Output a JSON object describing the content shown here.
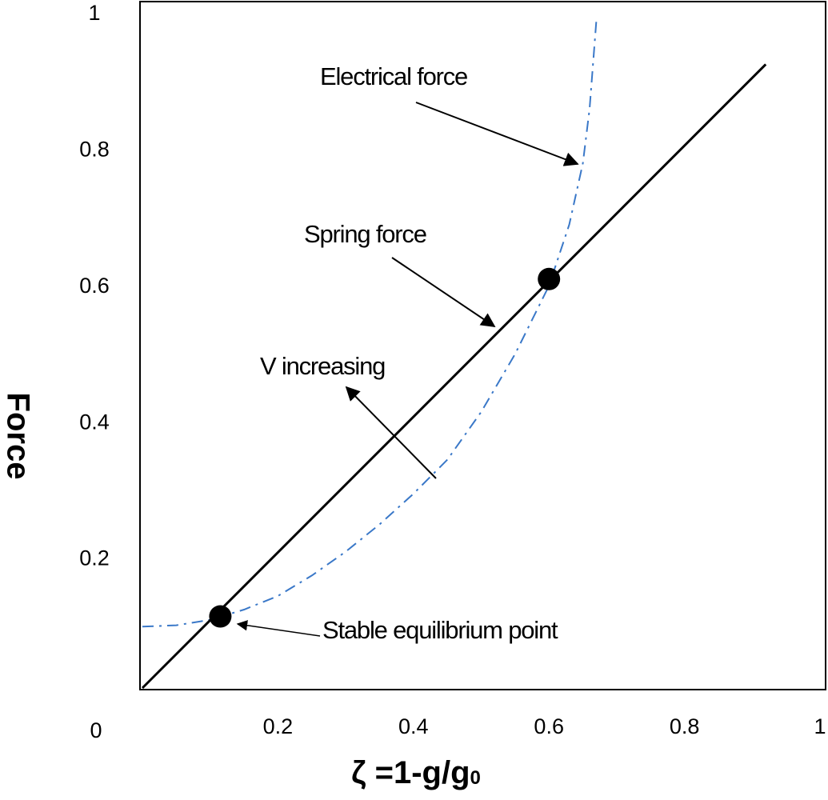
{
  "chart_data": {
    "type": "line",
    "xlabel": "ζ  =1-g/g",
    "xlabel_subscript": "0",
    "ylabel": "Force",
    "xlim": [
      0,
      1
    ],
    "ylim": [
      0,
      1
    ],
    "xticks": [
      0,
      0.2,
      0.4,
      0.6,
      0.8,
      1
    ],
    "yticks": [
      0.2,
      0.4,
      0.6,
      0.8,
      1
    ],
    "series": [
      {
        "name": "Electrical force",
        "color": "#3a78c8",
        "style": "dashdot",
        "x": [
          0,
          0.05,
          0.1,
          0.15,
          0.2,
          0.25,
          0.3,
          0.35,
          0.4,
          0.45,
          0.5,
          0.55,
          0.6,
          0.63,
          0.65,
          0.66,
          0.67
        ],
        "values": [
          0.09,
          0.092,
          0.1,
          0.115,
          0.135,
          0.165,
          0.2,
          0.24,
          0.285,
          0.335,
          0.405,
          0.49,
          0.59,
          0.68,
          0.77,
          0.85,
          0.98
        ]
      },
      {
        "name": "Spring force",
        "color": "#000000",
        "style": "solid",
        "x": [
          0,
          0.92
        ],
        "values": [
          0,
          0.915
        ]
      }
    ],
    "equilibrium_points": {
      "x": [
        0.115,
        0.6
      ],
      "values": [
        0.105,
        0.6
      ],
      "color": "#000000"
    },
    "annotations": [
      "Electrical force",
      "Spring force",
      "V increasing",
      "Stable equilibrium point"
    ]
  }
}
